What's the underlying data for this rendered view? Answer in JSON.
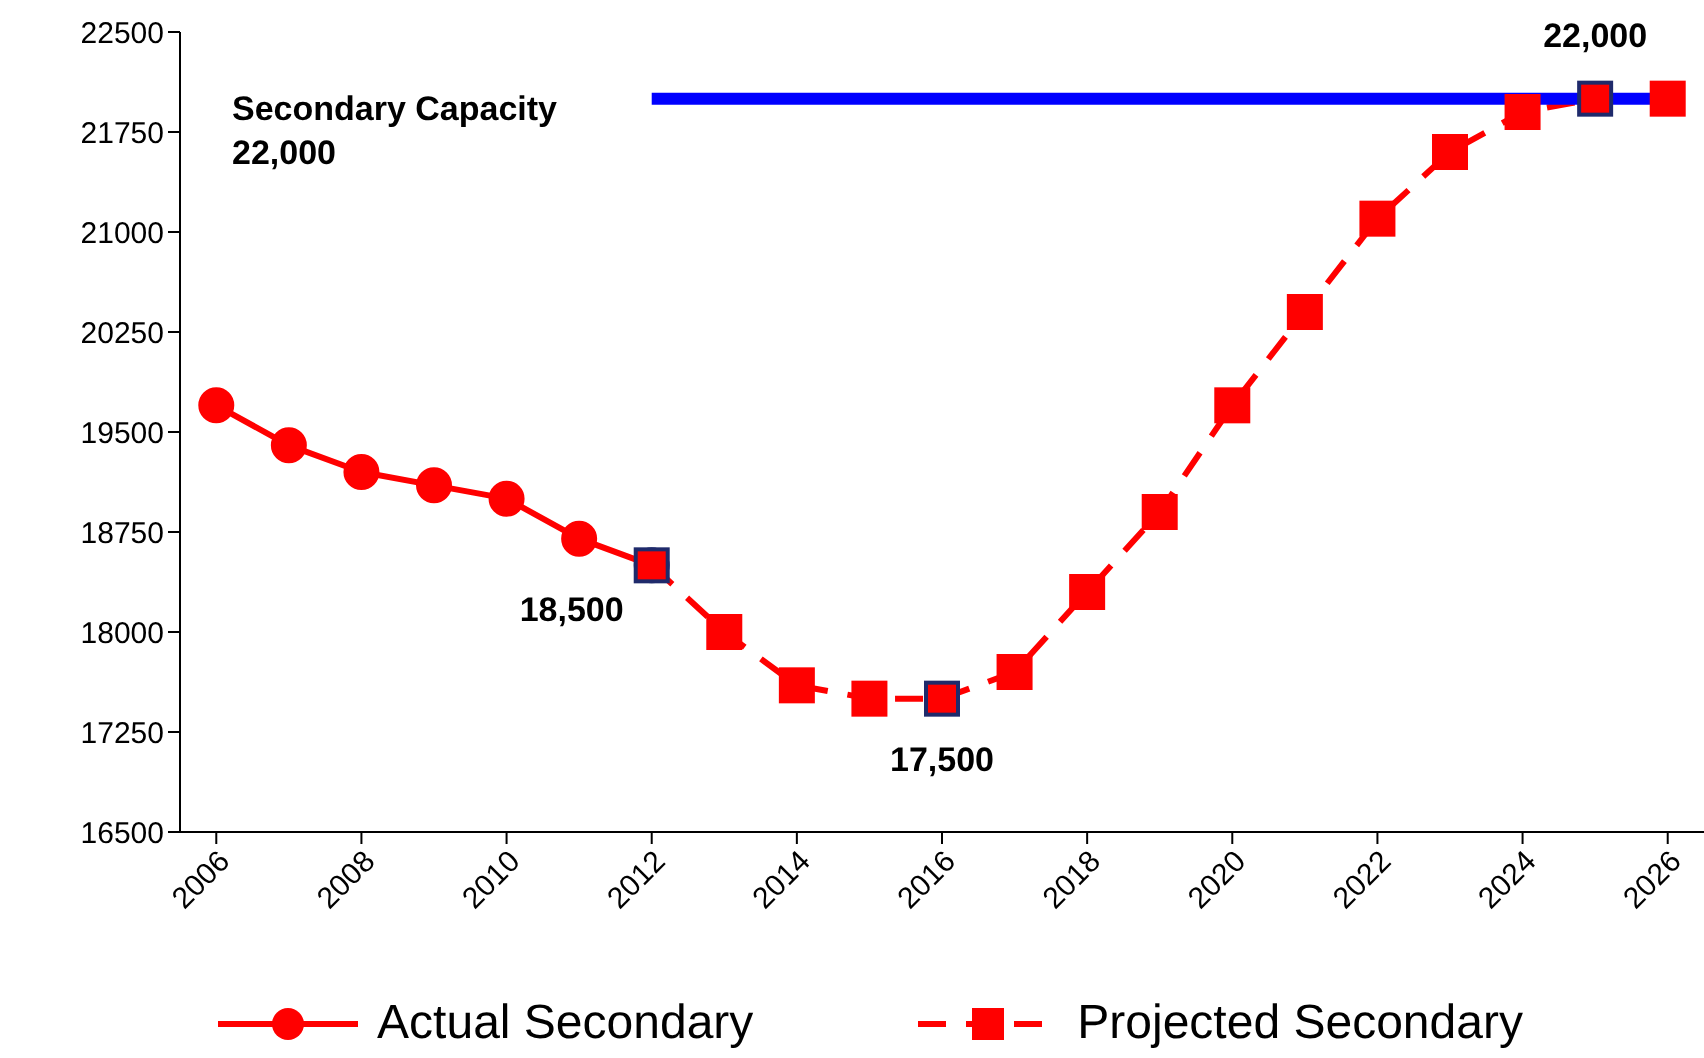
{
  "chart_data": {
    "type": "line",
    "series": [
      {
        "name": "Actual Secondary",
        "color": "#ff0000",
        "x": [
          2006,
          2007,
          2008,
          2009,
          2010,
          2011,
          2012
        ],
        "values": [
          19700,
          19400,
          19200,
          19100,
          19000,
          18700,
          18500
        ],
        "marker": "circle",
        "line_style": "solid"
      },
      {
        "name": "Projected Secondary",
        "color": "#ff0000",
        "x": [
          2012,
          2013,
          2014,
          2015,
          2016,
          2017,
          2018,
          2019,
          2020,
          2021,
          2022,
          2023,
          2024,
          2025,
          2026
        ],
        "values": [
          18500,
          18000,
          17600,
          17500,
          17500,
          17700,
          18300,
          18900,
          19700,
          20400,
          21100,
          21600,
          21900,
          22000,
          22000
        ],
        "marker": "square",
        "line_style": "dashed"
      },
      {
        "color": "#0000ff",
        "x": [
          2012,
          2026
        ],
        "values": [
          22000,
          22000
        ],
        "marker": "none",
        "line_style": "solid"
      }
    ],
    "annotations": [
      "Secondary Capacity 22,000",
      {
        "text": "18,500",
        "x": 2012,
        "y": 18500
      },
      {
        "text": "17,500",
        "x": 2016,
        "y": 17500
      },
      {
        "text": "22,000",
        "x": 2025,
        "y": 22000
      }
    ],
    "xlim": [
      2005.5,
      2026.5
    ],
    "xticks": [
      2006,
      2008,
      2010,
      2012,
      2014,
      2016,
      2018,
      2020,
      2022,
      2024,
      2026
    ],
    "ylim": [
      16500,
      22500
    ],
    "yticks": [
      16500,
      17250,
      18000,
      18750,
      19500,
      20250,
      21000,
      21750,
      22500
    ],
    "grid": false,
    "legend": "bottom"
  }
}
